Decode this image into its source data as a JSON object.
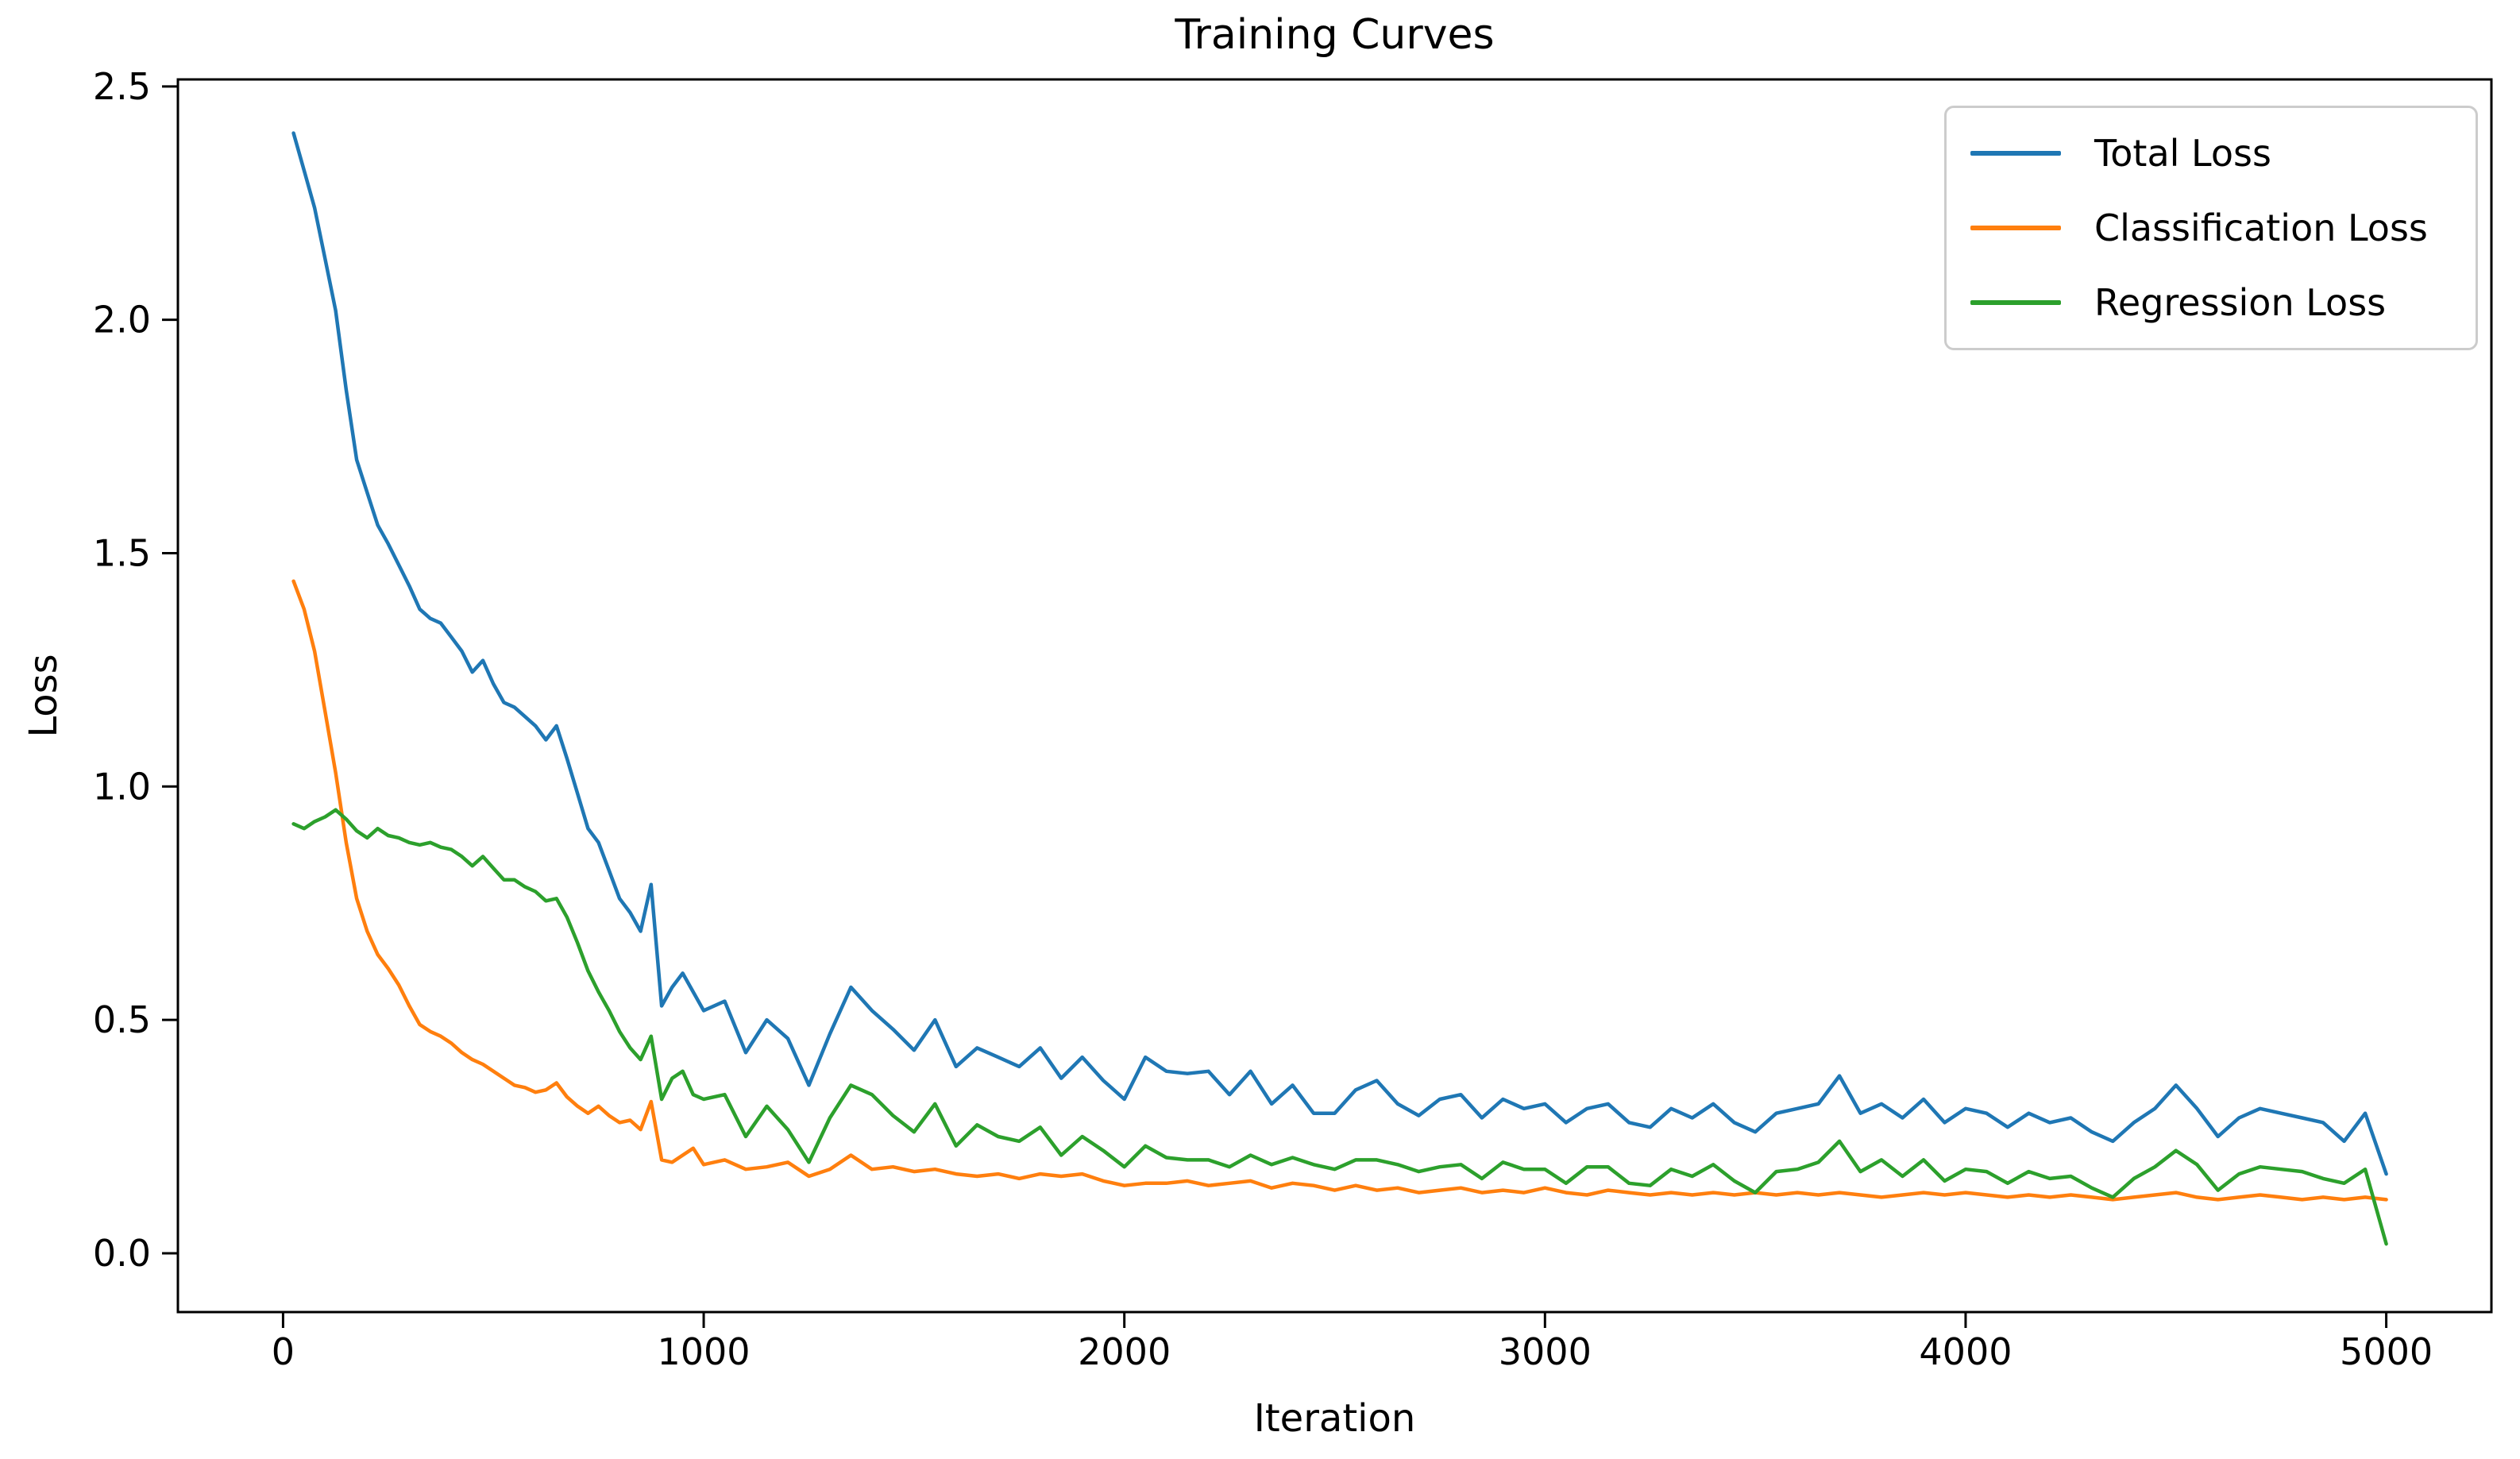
{
  "chart_data": {
    "type": "line",
    "title": "Training Curves",
    "xlabel": "Iteration",
    "ylabel": "Loss",
    "xlim": [
      -250,
      5250
    ],
    "ylim": [
      -0.126,
      2.515
    ],
    "x_ticks": [
      0,
      1000,
      2000,
      3000,
      4000,
      5000
    ],
    "y_ticks": [
      0.0,
      0.5,
      1.0,
      1.5,
      2.0,
      2.5
    ],
    "grid": false,
    "legend_position": "upper right",
    "background_color": "#ffffff",
    "spine_color": "#000000",
    "legend_border_color": "#cccccc",
    "x": [
      25,
      50,
      75,
      100,
      125,
      150,
      175,
      200,
      225,
      250,
      275,
      300,
      325,
      350,
      375,
      400,
      425,
      450,
      475,
      500,
      525,
      550,
      575,
      600,
      625,
      650,
      675,
      700,
      725,
      750,
      775,
      800,
      825,
      850,
      875,
      900,
      925,
      950,
      975,
      1000,
      1050,
      1100,
      1150,
      1200,
      1250,
      1300,
      1350,
      1400,
      1450,
      1500,
      1550,
      1600,
      1650,
      1700,
      1750,
      1800,
      1850,
      1900,
      1950,
      2000,
      2050,
      2100,
      2150,
      2200,
      2250,
      2300,
      2350,
      2400,
      2450,
      2500,
      2550,
      2600,
      2650,
      2700,
      2750,
      2800,
      2850,
      2900,
      2950,
      3000,
      3050,
      3100,
      3150,
      3200,
      3250,
      3300,
      3350,
      3400,
      3450,
      3500,
      3550,
      3600,
      3650,
      3700,
      3750,
      3800,
      3850,
      3900,
      3950,
      4000,
      4050,
      4100,
      4150,
      4200,
      4250,
      4300,
      4350,
      4400,
      4450,
      4500,
      4550,
      4600,
      4650,
      4700,
      4750,
      4800,
      4850,
      4900,
      4950,
      5000
    ],
    "series": [
      {
        "name": "Total Loss",
        "color": "#1f77b4",
        "y": [
          2.4,
          2.32,
          2.24,
          2.13,
          2.02,
          1.85,
          1.7,
          1.63,
          1.56,
          1.52,
          1.475,
          1.43,
          1.38,
          1.36,
          1.35,
          1.32,
          1.29,
          1.245,
          1.27,
          1.22,
          1.18,
          1.17,
          1.15,
          1.13,
          1.1,
          1.13,
          1.06,
          0.985,
          0.91,
          0.88,
          0.82,
          0.76,
          0.73,
          0.69,
          0.79,
          0.53,
          0.57,
          0.6,
          0.56,
          0.52,
          0.54,
          0.43,
          0.5,
          0.46,
          0.36,
          0.47,
          0.57,
          0.52,
          0.48,
          0.435,
          0.5,
          0.4,
          0.44,
          0.42,
          0.4,
          0.44,
          0.375,
          0.42,
          0.37,
          0.33,
          0.42,
          0.39,
          0.385,
          0.39,
          0.34,
          0.39,
          0.32,
          0.36,
          0.3,
          0.3,
          0.35,
          0.37,
          0.32,
          0.295,
          0.33,
          0.34,
          0.29,
          0.33,
          0.31,
          0.32,
          0.28,
          0.31,
          0.32,
          0.28,
          0.27,
          0.31,
          0.29,
          0.32,
          0.28,
          0.26,
          0.3,
          0.31,
          0.32,
          0.38,
          0.3,
          0.32,
          0.29,
          0.33,
          0.28,
          0.31,
          0.3,
          0.27,
          0.3,
          0.28,
          0.29,
          0.26,
          0.24,
          0.28,
          0.31,
          0.36,
          0.31,
          0.25,
          0.29,
          0.31,
          0.3,
          0.29,
          0.28,
          0.24,
          0.3,
          0.17
        ]
      },
      {
        "name": "Classification Loss",
        "color": "#ff7f0e",
        "y": [
          1.44,
          1.38,
          1.29,
          1.16,
          1.03,
          0.88,
          0.76,
          0.69,
          0.64,
          0.61,
          0.575,
          0.53,
          0.49,
          0.475,
          0.465,
          0.45,
          0.43,
          0.415,
          0.405,
          0.39,
          0.375,
          0.36,
          0.355,
          0.345,
          0.35,
          0.365,
          0.335,
          0.315,
          0.3,
          0.315,
          0.295,
          0.28,
          0.285,
          0.265,
          0.325,
          0.2,
          0.195,
          0.21,
          0.225,
          0.19,
          0.2,
          0.18,
          0.185,
          0.195,
          0.165,
          0.18,
          0.21,
          0.18,
          0.185,
          0.175,
          0.18,
          0.17,
          0.165,
          0.17,
          0.16,
          0.17,
          0.165,
          0.17,
          0.155,
          0.145,
          0.15,
          0.15,
          0.155,
          0.145,
          0.15,
          0.155,
          0.14,
          0.15,
          0.145,
          0.135,
          0.145,
          0.135,
          0.14,
          0.13,
          0.135,
          0.14,
          0.13,
          0.135,
          0.13,
          0.14,
          0.13,
          0.125,
          0.135,
          0.13,
          0.125,
          0.13,
          0.125,
          0.13,
          0.125,
          0.13,
          0.125,
          0.13,
          0.125,
          0.13,
          0.125,
          0.12,
          0.125,
          0.13,
          0.125,
          0.13,
          0.125,
          0.12,
          0.125,
          0.12,
          0.125,
          0.12,
          0.115,
          0.12,
          0.125,
          0.13,
          0.12,
          0.115,
          0.12,
          0.125,
          0.12,
          0.115,
          0.12,
          0.115,
          0.12,
          0.115
        ]
      },
      {
        "name": "Regression Loss",
        "color": "#2ca02c",
        "y": [
          0.92,
          0.91,
          0.925,
          0.935,
          0.95,
          0.93,
          0.905,
          0.89,
          0.91,
          0.895,
          0.89,
          0.88,
          0.875,
          0.88,
          0.87,
          0.865,
          0.85,
          0.83,
          0.85,
          0.825,
          0.8,
          0.8,
          0.785,
          0.775,
          0.755,
          0.76,
          0.72,
          0.665,
          0.605,
          0.56,
          0.52,
          0.475,
          0.44,
          0.415,
          0.465,
          0.33,
          0.375,
          0.39,
          0.34,
          0.33,
          0.34,
          0.25,
          0.315,
          0.265,
          0.195,
          0.29,
          0.36,
          0.34,
          0.295,
          0.26,
          0.32,
          0.23,
          0.275,
          0.25,
          0.24,
          0.27,
          0.21,
          0.25,
          0.22,
          0.185,
          0.23,
          0.205,
          0.2,
          0.2,
          0.185,
          0.21,
          0.19,
          0.205,
          0.19,
          0.18,
          0.2,
          0.2,
          0.19,
          0.175,
          0.185,
          0.19,
          0.16,
          0.195,
          0.18,
          0.18,
          0.15,
          0.185,
          0.185,
          0.15,
          0.145,
          0.18,
          0.165,
          0.19,
          0.155,
          0.13,
          0.175,
          0.18,
          0.195,
          0.24,
          0.175,
          0.2,
          0.165,
          0.2,
          0.155,
          0.18,
          0.175,
          0.15,
          0.175,
          0.16,
          0.165,
          0.14,
          0.12,
          0.16,
          0.185,
          0.22,
          0.19,
          0.135,
          0.17,
          0.185,
          0.18,
          0.175,
          0.16,
          0.15,
          0.18,
          0.02
        ]
      }
    ]
  }
}
